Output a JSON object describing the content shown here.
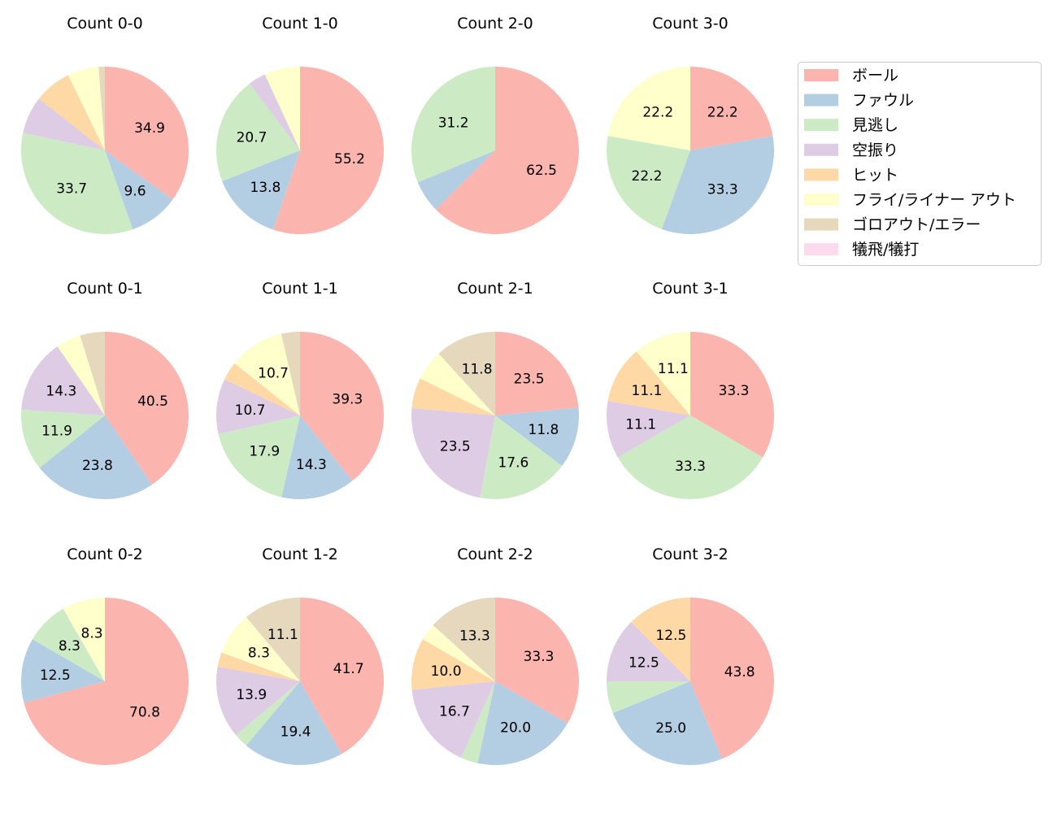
{
  "chart_data": {
    "type": "pie",
    "categories": [
      "ボール",
      "ファウル",
      "見逃し",
      "空振り",
      "ヒット",
      "フライ/ライナー アウト",
      "ゴロアウト/エラー",
      "犠飛/犠打"
    ],
    "colors": [
      "#fbb4ae",
      "#b3cde3",
      "#ccebc5",
      "#decbe4",
      "#fed9a6",
      "#ffffcc",
      "#e5d8bd",
      "#fddaec"
    ],
    "legend_position": "right",
    "start_angle": 90,
    "direction": "clockwise",
    "label_format": "%.1f (shown for slices ≥ 8)",
    "pies": [
      {
        "title": "Count 0-0",
        "values": [
          34.9,
          9.6,
          33.7,
          7.2,
          7.2,
          6.0,
          1.2,
          0
        ]
      },
      {
        "title": "Count 1-0",
        "values": [
          55.2,
          13.8,
          20.7,
          3.4,
          0,
          6.9,
          0,
          0
        ]
      },
      {
        "title": "Count 2-0",
        "values": [
          62.5,
          6.2,
          31.2,
          0,
          0,
          0,
          0,
          0
        ]
      },
      {
        "title": "Count 3-0",
        "values": [
          22.2,
          33.3,
          22.2,
          0,
          0,
          22.2,
          0,
          0
        ]
      },
      {
        "title": "Count 0-1",
        "values": [
          40.5,
          23.8,
          11.9,
          14.3,
          0,
          4.8,
          4.8,
          0
        ]
      },
      {
        "title": "Count 1-1",
        "values": [
          39.3,
          14.3,
          17.9,
          10.7,
          3.6,
          10.7,
          3.6,
          0
        ]
      },
      {
        "title": "Count 2-1",
        "values": [
          23.5,
          11.8,
          17.6,
          23.5,
          5.9,
          5.9,
          11.8,
          0
        ]
      },
      {
        "title": "Count 3-1",
        "values": [
          33.3,
          0,
          33.3,
          11.1,
          11.1,
          11.1,
          0,
          0
        ]
      },
      {
        "title": "Count 0-2",
        "values": [
          70.8,
          12.5,
          8.3,
          0,
          0,
          8.3,
          0,
          0
        ]
      },
      {
        "title": "Count 1-2",
        "values": [
          41.7,
          19.4,
          2.8,
          13.9,
          2.8,
          8.3,
          11.1,
          0
        ]
      },
      {
        "title": "Count 2-2",
        "values": [
          33.3,
          20.0,
          3.3,
          16.7,
          10.0,
          3.3,
          13.3,
          0
        ]
      },
      {
        "title": "Count 3-2",
        "values": [
          43.8,
          25.0,
          6.2,
          12.5,
          12.5,
          0,
          0,
          0
        ]
      }
    ]
  }
}
